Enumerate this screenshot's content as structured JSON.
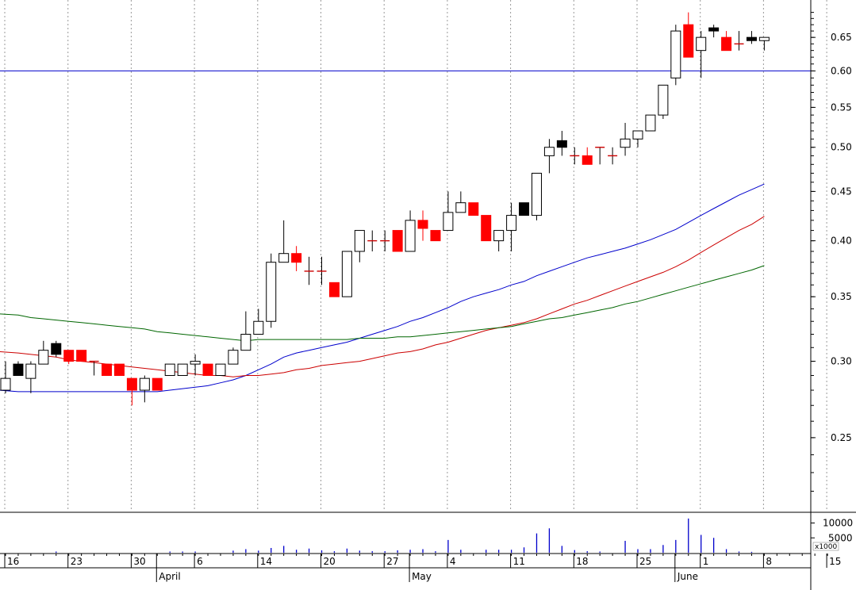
{
  "chart_data": {
    "type": "candlestick",
    "y_scale": "log",
    "ylim": [
      0.21,
      0.7
    ],
    "price_ticks": [
      "0.25",
      "0.30",
      "0.35",
      "0.40",
      "0.45",
      "0.50",
      "0.55",
      "0.60",
      "0.65"
    ],
    "volume_ticks": [
      "5000",
      "10000"
    ],
    "volume_unit": "x1000",
    "volume_max": 12000,
    "reference_line": {
      "value": 0.6,
      "color": "#0000cc"
    },
    "x_dates": [
      "16",
      "23",
      "30",
      "6",
      "14",
      "20",
      "27",
      "4",
      "11",
      "18",
      "25",
      "1",
      "8",
      "15"
    ],
    "x_months": [
      "April",
      "May",
      "June"
    ],
    "colors": {
      "up_body": "#ffffff",
      "down_body": "#ff0000",
      "black_body": "#000000",
      "ma_short": "#0000cc",
      "ma_mid": "#cc0000",
      "ma_long": "#006600",
      "volume": "#0000cc"
    },
    "candles": [
      {
        "o": 0.28,
        "h": 0.3,
        "l": 0.278,
        "c": 0.288,
        "k": "up",
        "v": 0
      },
      {
        "o": 0.298,
        "h": 0.3,
        "l": 0.29,
        "c": 0.29,
        "k": "black",
        "v": 0
      },
      {
        "o": 0.288,
        "h": 0.3,
        "l": 0.278,
        "c": 0.298,
        "k": "up",
        "v": 0
      },
      {
        "o": 0.298,
        "h": 0.315,
        "l": 0.298,
        "c": 0.308,
        "k": "up",
        "v": 0
      },
      {
        "o": 0.313,
        "h": 0.315,
        "l": 0.303,
        "c": 0.305,
        "k": "black",
        "v": 400
      },
      {
        "o": 0.308,
        "h": 0.308,
        "l": 0.298,
        "c": 0.3,
        "k": "down",
        "v": 0
      },
      {
        "o": 0.308,
        "h": 0.308,
        "l": 0.3,
        "c": 0.3,
        "k": "down",
        "v": 0
      },
      {
        "o": 0.3,
        "h": 0.3,
        "l": 0.29,
        "c": 0.3,
        "k": "flat",
        "v": 0
      },
      {
        "o": 0.298,
        "h": 0.298,
        "l": 0.29,
        "c": 0.29,
        "k": "down",
        "v": 0
      },
      {
        "o": 0.298,
        "h": 0.298,
        "l": 0.29,
        "c": 0.29,
        "k": "down",
        "v": 0
      },
      {
        "o": 0.288,
        "h": 0.288,
        "l": 0.27,
        "c": 0.28,
        "k": "down",
        "v": 0
      },
      {
        "o": 0.28,
        "h": 0.29,
        "l": 0.272,
        "c": 0.288,
        "k": "up",
        "v": 0
      },
      {
        "o": 0.288,
        "h": 0.288,
        "l": 0.28,
        "c": 0.28,
        "k": "down",
        "v": 0
      },
      {
        "o": 0.29,
        "h": 0.298,
        "l": 0.29,
        "c": 0.298,
        "k": "up",
        "v": 400
      },
      {
        "o": 0.29,
        "h": 0.298,
        "l": 0.29,
        "c": 0.298,
        "k": "up",
        "v": 400
      },
      {
        "o": 0.298,
        "h": 0.305,
        "l": 0.29,
        "c": 0.3,
        "k": "up",
        "v": 400
      },
      {
        "o": 0.298,
        "h": 0.298,
        "l": 0.29,
        "c": 0.29,
        "k": "down",
        "v": 0
      },
      {
        "o": 0.29,
        "h": 0.298,
        "l": 0.29,
        "c": 0.298,
        "k": "up",
        "v": 0
      },
      {
        "o": 0.298,
        "h": 0.31,
        "l": 0.298,
        "c": 0.308,
        "k": "up",
        "v": 700
      },
      {
        "o": 0.308,
        "h": 0.338,
        "l": 0.308,
        "c": 0.32,
        "k": "up",
        "v": 1200
      },
      {
        "o": 0.32,
        "h": 0.34,
        "l": 0.32,
        "c": 0.33,
        "k": "up",
        "v": 700
      },
      {
        "o": 0.33,
        "h": 0.388,
        "l": 0.325,
        "c": 0.38,
        "k": "up",
        "v": 1600
      },
      {
        "o": 0.38,
        "h": 0.42,
        "l": 0.38,
        "c": 0.388,
        "k": "up",
        "v": 2300
      },
      {
        "o": 0.388,
        "h": 0.395,
        "l": 0.372,
        "c": 0.38,
        "k": "down",
        "v": 1000
      },
      {
        "o": 0.372,
        "h": 0.385,
        "l": 0.36,
        "c": 0.372,
        "k": "flat",
        "v": 1400
      },
      {
        "o": 0.372,
        "h": 0.385,
        "l": 0.36,
        "c": 0.372,
        "k": "flat",
        "v": 800
      },
      {
        "o": 0.362,
        "h": 0.362,
        "l": 0.35,
        "c": 0.35,
        "k": "down",
        "v": 500
      },
      {
        "o": 0.35,
        "h": 0.39,
        "l": 0.35,
        "c": 0.39,
        "k": "up",
        "v": 1400
      },
      {
        "o": 0.39,
        "h": 0.41,
        "l": 0.38,
        "c": 0.41,
        "k": "up",
        "v": 700
      },
      {
        "o": 0.4,
        "h": 0.41,
        "l": 0.39,
        "c": 0.4,
        "k": "flat",
        "v": 500
      },
      {
        "o": 0.4,
        "h": 0.41,
        "l": 0.39,
        "c": 0.4,
        "k": "flat",
        "v": 500
      },
      {
        "o": 0.41,
        "h": 0.41,
        "l": 0.39,
        "c": 0.39,
        "k": "down",
        "v": 800
      },
      {
        "o": 0.39,
        "h": 0.43,
        "l": 0.39,
        "c": 0.42,
        "k": "up",
        "v": 1000
      },
      {
        "o": 0.42,
        "h": 0.43,
        "l": 0.4,
        "c": 0.412,
        "k": "down",
        "v": 1200
      },
      {
        "o": 0.41,
        "h": 0.41,
        "l": 0.4,
        "c": 0.4,
        "k": "down",
        "v": 500
      },
      {
        "o": 0.41,
        "h": 0.45,
        "l": 0.41,
        "c": 0.428,
        "k": "up",
        "v": 4300
      },
      {
        "o": 0.428,
        "h": 0.45,
        "l": 0.428,
        "c": 0.438,
        "k": "up",
        "v": 1000
      },
      {
        "o": 0.438,
        "h": 0.438,
        "l": 0.425,
        "c": 0.425,
        "k": "down",
        "v": 0
      },
      {
        "o": 0.425,
        "h": 0.425,
        "l": 0.4,
        "c": 0.4,
        "k": "down",
        "v": 1000
      },
      {
        "o": 0.4,
        "h": 0.41,
        "l": 0.39,
        "c": 0.41,
        "k": "up",
        "v": 1000
      },
      {
        "o": 0.41,
        "h": 0.438,
        "l": 0.39,
        "c": 0.425,
        "k": "up",
        "v": 1000
      },
      {
        "o": 0.438,
        "h": 0.438,
        "l": 0.425,
        "c": 0.425,
        "k": "black",
        "v": 1800
      },
      {
        "o": 0.425,
        "h": 0.47,
        "l": 0.42,
        "c": 0.47,
        "k": "up",
        "v": 6500
      },
      {
        "o": 0.49,
        "h": 0.51,
        "l": 0.47,
        "c": 0.5,
        "k": "up",
        "v": 8200
      },
      {
        "o": 0.508,
        "h": 0.52,
        "l": 0.49,
        "c": 0.5,
        "k": "black",
        "v": 2300
      },
      {
        "o": 0.49,
        "h": 0.5,
        "l": 0.48,
        "c": 0.49,
        "k": "flat",
        "v": 900
      },
      {
        "o": 0.49,
        "h": 0.5,
        "l": 0.48,
        "c": 0.48,
        "k": "down",
        "v": 500
      },
      {
        "o": 0.5,
        "h": 0.5,
        "l": 0.48,
        "c": 0.5,
        "k": "flat",
        "v": 400
      },
      {
        "o": 0.49,
        "h": 0.5,
        "l": 0.48,
        "c": 0.49,
        "k": "flat",
        "v": 0
      },
      {
        "o": 0.5,
        "h": 0.53,
        "l": 0.49,
        "c": 0.51,
        "k": "up",
        "v": 4000
      },
      {
        "o": 0.51,
        "h": 0.52,
        "l": 0.5,
        "c": 0.52,
        "k": "up",
        "v": 1200
      },
      {
        "o": 0.52,
        "h": 0.54,
        "l": 0.52,
        "c": 0.54,
        "k": "up",
        "v": 1200
      },
      {
        "o": 0.54,
        "h": 0.58,
        "l": 0.535,
        "c": 0.58,
        "k": "up",
        "v": 2600
      },
      {
        "o": 0.59,
        "h": 0.67,
        "l": 0.58,
        "c": 0.66,
        "k": "up",
        "v": 4300
      },
      {
        "o": 0.67,
        "h": 0.69,
        "l": 0.62,
        "c": 0.62,
        "k": "down",
        "v": 11500
      },
      {
        "o": 0.63,
        "h": 0.66,
        "l": 0.59,
        "c": 0.65,
        "k": "up",
        "v": 6000
      },
      {
        "o": 0.665,
        "h": 0.67,
        "l": 0.65,
        "c": 0.66,
        "k": "black",
        "v": 5000
      },
      {
        "o": 0.65,
        "h": 0.66,
        "l": 0.63,
        "c": 0.63,
        "k": "down",
        "v": 1200
      },
      {
        "o": 0.64,
        "h": 0.66,
        "l": 0.63,
        "c": 0.64,
        "k": "flat",
        "v": 400
      },
      {
        "o": 0.65,
        "h": 0.66,
        "l": 0.64,
        "c": 0.645,
        "k": "black",
        "v": 300
      },
      {
        "o": 0.645,
        "h": 0.65,
        "l": 0.63,
        "c": 0.65,
        "k": "up",
        "v": 0
      }
    ],
    "ma_short": [
      0.28,
      0.279,
      0.279,
      0.279,
      0.279,
      0.279,
      0.279,
      0.279,
      0.279,
      0.279,
      0.279,
      0.279,
      0.279,
      0.28,
      0.281,
      0.282,
      0.283,
      0.285,
      0.287,
      0.29,
      0.294,
      0.298,
      0.303,
      0.306,
      0.308,
      0.31,
      0.312,
      0.314,
      0.317,
      0.32,
      0.323,
      0.326,
      0.33,
      0.333,
      0.337,
      0.341,
      0.346,
      0.35,
      0.353,
      0.356,
      0.36,
      0.363,
      0.368,
      0.372,
      0.376,
      0.38,
      0.384,
      0.387,
      0.39,
      0.393,
      0.397,
      0.401,
      0.406,
      0.411,
      0.418,
      0.425,
      0.432,
      0.439,
      0.446,
      0.452,
      0.458
    ],
    "ma_mid": [
      0.307,
      0.306,
      0.305,
      0.304,
      0.303,
      0.301,
      0.3,
      0.299,
      0.298,
      0.297,
      0.296,
      0.295,
      0.294,
      0.293,
      0.292,
      0.291,
      0.29,
      0.29,
      0.289,
      0.29,
      0.29,
      0.291,
      0.292,
      0.294,
      0.295,
      0.297,
      0.298,
      0.299,
      0.3,
      0.302,
      0.304,
      0.306,
      0.307,
      0.309,
      0.312,
      0.314,
      0.317,
      0.32,
      0.323,
      0.325,
      0.327,
      0.329,
      0.332,
      0.336,
      0.34,
      0.344,
      0.347,
      0.351,
      0.355,
      0.359,
      0.363,
      0.367,
      0.371,
      0.376,
      0.382,
      0.389,
      0.396,
      0.403,
      0.41,
      0.416,
      0.424
    ],
    "ma_long": [
      0.336,
      0.335,
      0.333,
      0.332,
      0.331,
      0.33,
      0.329,
      0.328,
      0.327,
      0.326,
      0.325,
      0.324,
      0.322,
      0.321,
      0.32,
      0.319,
      0.318,
      0.317,
      0.316,
      0.315,
      0.316,
      0.316,
      0.316,
      0.316,
      0.316,
      0.316,
      0.316,
      0.316,
      0.317,
      0.317,
      0.317,
      0.318,
      0.318,
      0.319,
      0.32,
      0.321,
      0.322,
      0.323,
      0.324,
      0.325,
      0.326,
      0.328,
      0.33,
      0.332,
      0.333,
      0.335,
      0.337,
      0.339,
      0.341,
      0.344,
      0.346,
      0.349,
      0.352,
      0.355,
      0.358,
      0.361,
      0.364,
      0.367,
      0.37,
      0.373,
      0.377
    ]
  }
}
